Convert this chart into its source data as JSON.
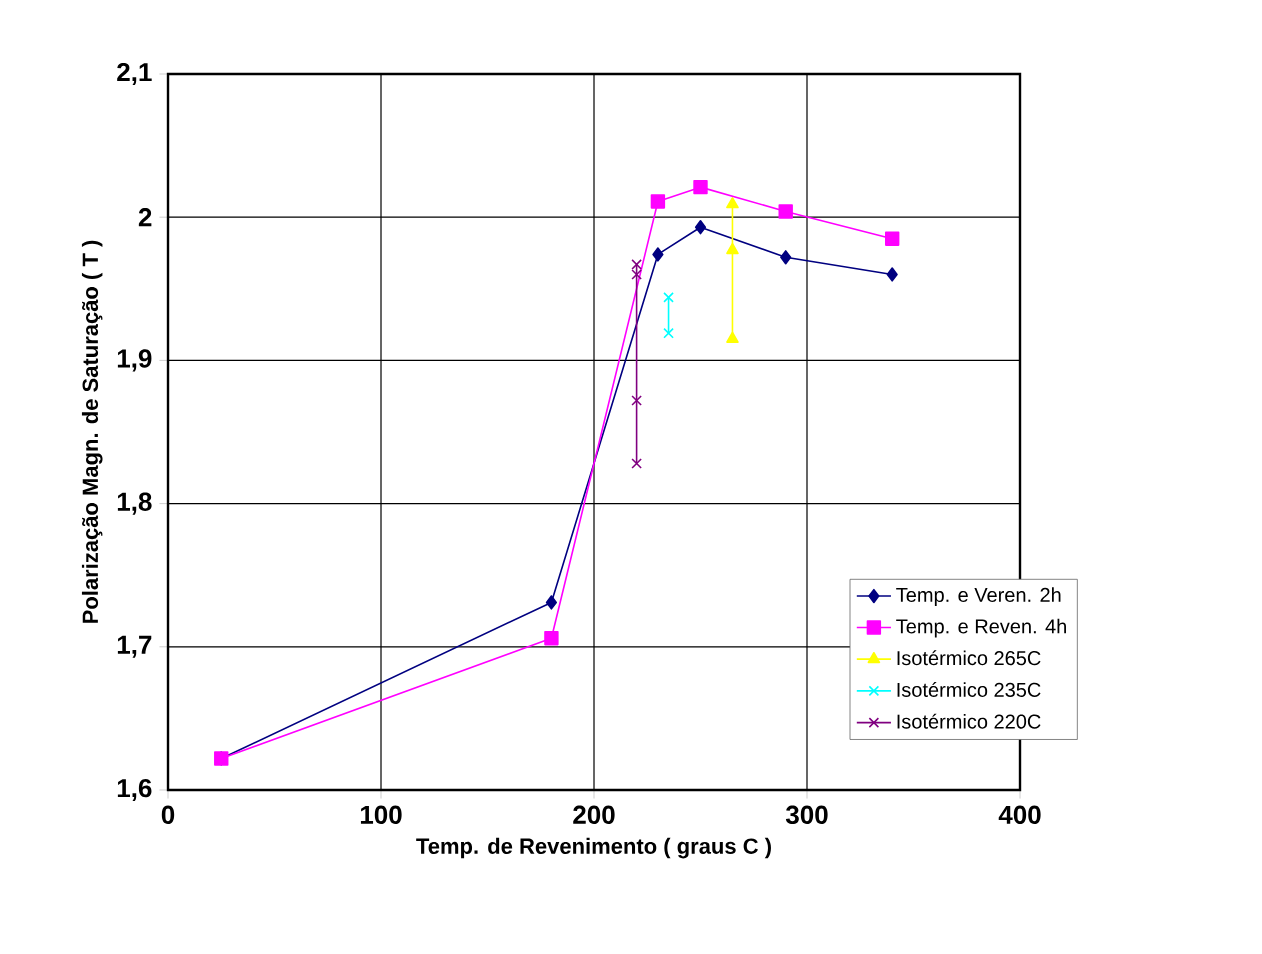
{
  "chart_data": {
    "type": "line",
    "xlabel": "Temp. de Revenimento ( graus C )",
    "ylabel": "Polarização Magn. de Saturação ( T )",
    "xlim": [
      0,
      400
    ],
    "xticks": [
      0,
      100,
      200,
      300,
      400
    ],
    "ylim": [
      1.6,
      2.1
    ],
    "yticks": [
      {
        "value": 1.6,
        "label": "1,6"
      },
      {
        "value": 1.7,
        "label": "1,7"
      },
      {
        "value": 1.8,
        "label": "1,8"
      },
      {
        "value": 1.9,
        "label": "1,9"
      },
      {
        "value": 2.0,
        "label": "2"
      },
      {
        "value": 2.1,
        "label": "2,1"
      }
    ],
    "grid": true,
    "legend": "right",
    "line_style": "solid",
    "series": [
      {
        "name": "Temp. e Veren. 2h",
        "color": "#000080",
        "marker": "diamond",
        "x": [
          25,
          180,
          230,
          250,
          290,
          340
        ],
        "values": [
          1.622,
          1.731,
          1.974,
          1.993,
          1.972,
          1.96
        ]
      },
      {
        "name": "Temp. e Reven. 4h",
        "color": "#ff00ff",
        "marker": "square",
        "x": [
          25,
          180,
          230,
          250,
          290,
          340
        ],
        "values": [
          1.622,
          1.706,
          2.011,
          2.021,
          2.004,
          1.985
        ]
      },
      {
        "name": "Isotérmico 265C",
        "color": "#ffff00",
        "marker": "triangle",
        "x": [
          265,
          265,
          265
        ],
        "values": [
          2.009,
          1.977,
          1.915
        ]
      },
      {
        "name": "Isotérmico 235C",
        "color": "#00ffff",
        "marker": "cross",
        "x": [
          235,
          235
        ],
        "values": [
          1.944,
          1.919
        ]
      },
      {
        "name": "Isotérmico 220C",
        "color": "#800080",
        "marker": "cross",
        "x": [
          220,
          220,
          220,
          220
        ],
        "values": [
          1.967,
          1.96,
          1.872,
          1.828
        ]
      }
    ]
  }
}
